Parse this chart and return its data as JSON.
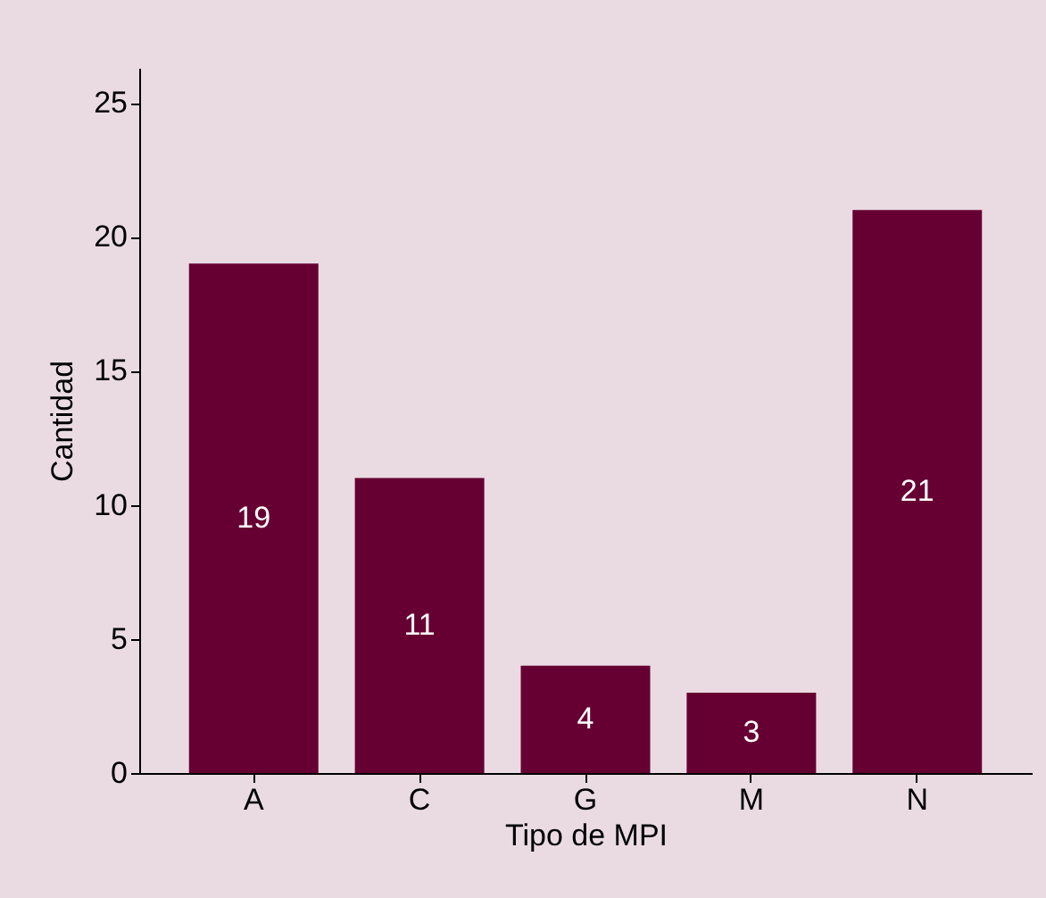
{
  "chart_data": {
    "type": "bar",
    "xlabel": "Tipo de MPI",
    "ylabel": "Cantidad",
    "categories": [
      "A",
      "C",
      "G",
      "M",
      "N"
    ],
    "values": [
      19,
      11,
      4,
      3,
      21
    ],
    "color": "#660033",
    "ylim": [
      0,
      26.3
    ],
    "yticks": [
      0,
      5,
      10,
      15,
      20,
      25
    ],
    "data_labels": true,
    "grid": false
  }
}
